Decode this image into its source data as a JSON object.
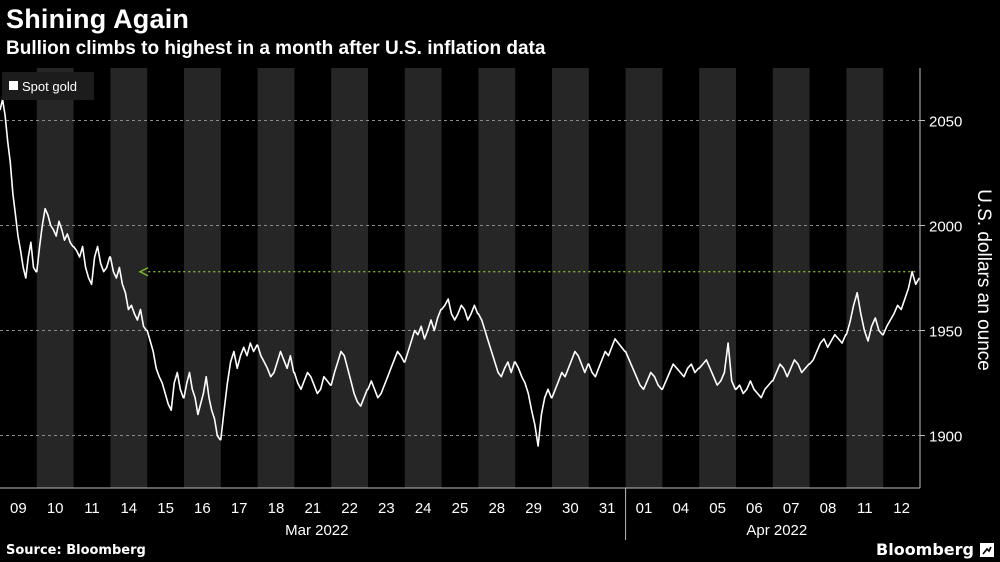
{
  "title": "Shining Again",
  "subtitle": "Bullion climbs to highest in a month after U.S. inflation data",
  "source": "Source: Bloomberg",
  "brand": "Bloomberg",
  "colors": {
    "background": "#000000",
    "line": "#ffffff",
    "band": "#262626",
    "grid": "#8a8a8a",
    "arrow": "#7fba2e"
  },
  "chart_data": {
    "type": "line",
    "title": "Shining Again",
    "subtitle": "Bullion climbs to highest in a month after U.S. inflation data",
    "legend": [
      "Spot gold"
    ],
    "legend_position": "top-left",
    "ylabel": "U.S. dollars an ounce",
    "y_axis_side": "right",
    "ylim": [
      1875,
      2075
    ],
    "yticks": [
      1900,
      1950,
      2000,
      2050
    ],
    "grid": "horizontal dashed",
    "x_tick_labels": [
      "09",
      "10",
      "11",
      "14",
      "15",
      "16",
      "17",
      "18",
      "21",
      "22",
      "23",
      "24",
      "25",
      "28",
      "29",
      "30",
      "31",
      "01",
      "04",
      "05",
      "06",
      "07",
      "08",
      "11",
      "12"
    ],
    "x_month_labels": [
      "Mar 2022",
      "Apr 2022"
    ],
    "annotation": "dotted arrow marking the latest level",
    "annotation_level": 1978,
    "series": [
      {
        "name": "Spot gold",
        "points_by_day": [
          {
            "day": "Mar 09",
            "values": [
              2055,
              2060,
              2052,
              2040,
              2030,
              2015,
              2005,
              1995,
              1988,
              1980,
              1975,
              1985,
              1992,
              1980,
              1978
            ]
          },
          {
            "day": "Mar 10",
            "values": [
              1978,
              1990,
              2000,
              2008,
              2005,
              2000,
              1998,
              1995,
              2002,
              1998,
              1993,
              1996,
              1992,
              1990
            ]
          },
          {
            "day": "Mar 11",
            "values": [
              1990,
              1988,
              1985,
              1990,
              1980,
              1975,
              1972,
              1985,
              1990,
              1982,
              1978,
              1980,
              1985
            ]
          },
          {
            "day": "Mar 14",
            "values": [
              1985,
              1978,
              1975,
              1980,
              1972,
              1968,
              1960,
              1962,
              1958,
              1955,
              1960,
              1952,
              1950
            ]
          },
          {
            "day": "Mar 15",
            "values": [
              1950,
              1945,
              1940,
              1932,
              1928,
              1925,
              1920,
              1915,
              1912,
              1925,
              1930,
              1922,
              1918
            ]
          },
          {
            "day": "Mar 16",
            "values": [
              1918,
              1925,
              1930,
              1922,
              1918,
              1910,
              1915,
              1920,
              1928,
              1918,
              1912,
              1908,
              1900,
              1898
            ]
          },
          {
            "day": "Mar 17",
            "values": [
              1898,
              1912,
              1925,
              1935,
              1940,
              1932,
              1938,
              1942,
              1938,
              1944,
              1940,
              1943
            ]
          },
          {
            "day": "Mar 18",
            "values": [
              1943,
              1938,
              1935,
              1932,
              1928,
              1930,
              1935,
              1940,
              1936,
              1932,
              1938,
              1930
            ]
          },
          {
            "day": "Mar 21",
            "values": [
              1930,
              1925,
              1922,
              1926,
              1930,
              1928,
              1924,
              1920,
              1922,
              1928,
              1926,
              1924
            ]
          },
          {
            "day": "Mar 22",
            "values": [
              1924,
              1930,
              1935,
              1940,
              1938,
              1932,
              1926,
              1920,
              1916,
              1914,
              1918,
              1922
            ]
          },
          {
            "day": "Mar 23",
            "values": [
              1922,
              1926,
              1922,
              1918,
              1920,
              1924,
              1928,
              1932,
              1936,
              1940,
              1938,
              1935
            ]
          },
          {
            "day": "Mar 24",
            "values": [
              1935,
              1940,
              1945,
              1950,
              1948,
              1952,
              1946,
              1950,
              1955,
              1950,
              1956,
              1960
            ]
          },
          {
            "day": "Mar 25",
            "values": [
              1960,
              1962,
              1965,
              1958,
              1955,
              1958,
              1962,
              1960,
              1955,
              1958,
              1962,
              1958
            ]
          },
          {
            "day": "Mar 28",
            "values": [
              1958,
              1955,
              1950,
              1945,
              1940,
              1935,
              1930,
              1928,
              1932,
              1935,
              1930,
              1935
            ]
          },
          {
            "day": "Mar 29",
            "values": [
              1935,
              1932,
              1928,
              1925,
              1920,
              1912,
              1905,
              1895,
              1910,
              1918,
              1922,
              1918
            ]
          },
          {
            "day": "Mar 30",
            "values": [
              1918,
              1922,
              1926,
              1930,
              1928,
              1932,
              1936,
              1940,
              1938,
              1934,
              1930,
              1934
            ]
          },
          {
            "day": "Mar 31",
            "values": [
              1934,
              1930,
              1928,
              1932,
              1936,
              1940,
              1938,
              1942,
              1946,
              1944,
              1942,
              1940
            ]
          },
          {
            "day": "Apr 01",
            "values": [
              1940,
              1936,
              1932,
              1928,
              1924,
              1922,
              1926,
              1930,
              1928,
              1924,
              1922
            ]
          },
          {
            "day": "Apr 04",
            "values": [
              1922,
              1926,
              1930,
              1934,
              1932,
              1930,
              1928,
              1932,
              1934,
              1930,
              1932
            ]
          },
          {
            "day": "Apr 05",
            "values": [
              1932,
              1934,
              1936,
              1932,
              1928,
              1924,
              1926,
              1930,
              1944,
              1926,
              1922
            ]
          },
          {
            "day": "Apr 06",
            "values": [
              1922,
              1924,
              1920,
              1922,
              1926,
              1922,
              1920,
              1918,
              1922,
              1924,
              1926
            ]
          },
          {
            "day": "Apr 07",
            "values": [
              1926,
              1930,
              1934,
              1932,
              1928,
              1932,
              1936,
              1934,
              1930,
              1932,
              1934
            ]
          },
          {
            "day": "Apr 08",
            "values": [
              1934,
              1936,
              1940,
              1944,
              1946,
              1942,
              1945,
              1948,
              1946,
              1944,
              1948
            ]
          },
          {
            "day": "Apr 11",
            "values": [
              1948,
              1954,
              1962,
              1968,
              1958,
              1950,
              1945,
              1952,
              1956,
              1950,
              1948
            ]
          },
          {
            "day": "Apr 12",
            "values": [
              1948,
              1952,
              1955,
              1958,
              1962,
              1960,
              1965,
              1970,
              1978,
              1972,
              1975
            ]
          }
        ]
      }
    ]
  }
}
